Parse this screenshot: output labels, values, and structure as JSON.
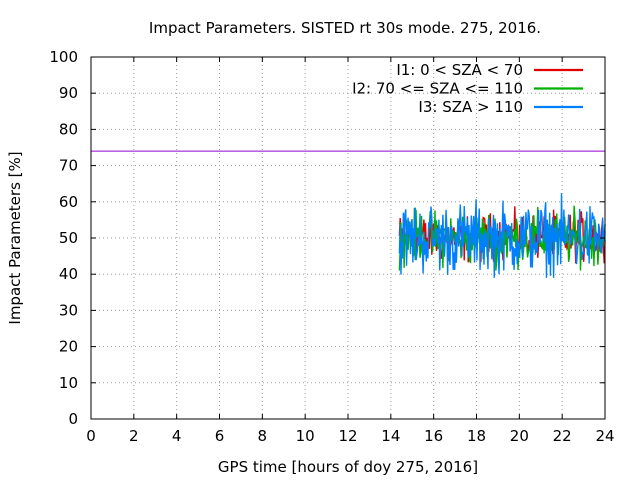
{
  "chart_data": {
    "type": "line",
    "title": "Impact Parameters. SISTED rt 30s mode. 275, 2016.",
    "xlabel": "GPS time [hours of doy 275, 2016]",
    "ylabel": "Impact Parameters [%]",
    "xlim": [
      0,
      24
    ],
    "ylim": [
      0,
      100
    ],
    "x_ticks": [
      "0",
      "2",
      "4",
      "6",
      "8",
      "10",
      "12",
      "14",
      "16",
      "18",
      "20",
      "22",
      "24"
    ],
    "y_ticks": [
      "0",
      "10",
      "20",
      "30",
      "40",
      "50",
      "60",
      "70",
      "80",
      "90",
      "100"
    ],
    "grid": true,
    "legend_position": "top-right",
    "reference_line": {
      "y": 74,
      "color": "#9400d3"
    },
    "series": [
      {
        "name": "I1: 0 < SZA < 70",
        "color": "#e00000",
        "x_start": 14.4,
        "x_end": 24,
        "mean": 50,
        "min": 43,
        "max": 60
      },
      {
        "name": "I2: 70 <= SZA <= 110",
        "color": "#00b000",
        "x_start": 14.4,
        "x_end": 24,
        "mean": 50,
        "min": 41,
        "max": 60
      },
      {
        "name": "I3: SZA > 110",
        "color": "#0080ff",
        "x_start": 14.4,
        "x_end": 24,
        "mean": 50,
        "min": 39,
        "max": 64
      }
    ]
  }
}
